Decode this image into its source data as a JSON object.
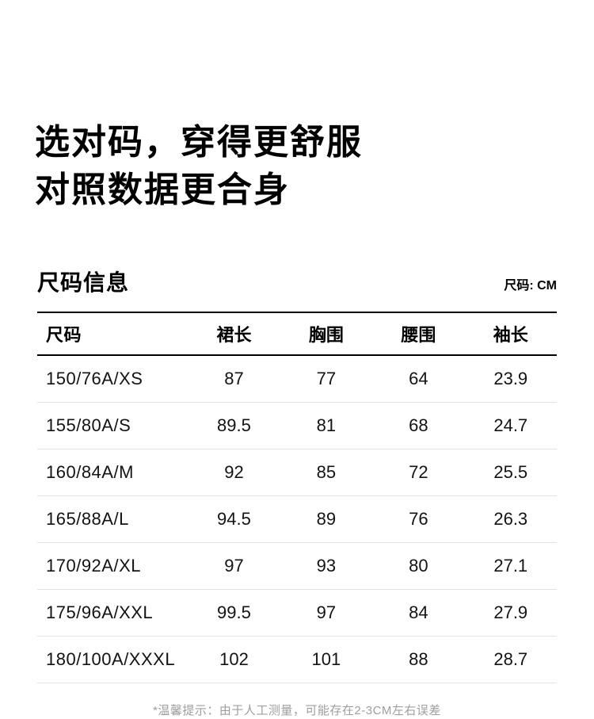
{
  "title": {
    "line1": "选对码，穿得更舒服",
    "line2": "对照数据更合身"
  },
  "section": {
    "title": "尺码信息",
    "unit_label": "尺码: CM"
  },
  "table": {
    "columns": [
      "尺码",
      "裙长",
      "胸围",
      "腰围",
      "袖长"
    ],
    "rows": [
      {
        "size": "150/76A/XS",
        "values": [
          "87",
          "77",
          "64",
          "23.9"
        ]
      },
      {
        "size": "155/80A/S",
        "values": [
          "89.5",
          "81",
          "68",
          "24.7"
        ]
      },
      {
        "size": "160/84A/M",
        "values": [
          "92",
          "85",
          "72",
          "25.5"
        ]
      },
      {
        "size": "165/88A/L",
        "values": [
          "94.5",
          "89",
          "76",
          "26.3"
        ]
      },
      {
        "size": "170/92A/XL",
        "values": [
          "97",
          "93",
          "80",
          "27.1"
        ]
      },
      {
        "size": "175/96A/XXL",
        "values": [
          "99.5",
          "97",
          "84",
          "27.9"
        ]
      },
      {
        "size": "180/100A/XXXL",
        "values": [
          "102",
          "101",
          "88",
          "28.7"
        ]
      }
    ]
  },
  "footnote": "*温馨提示：由于人工测量，可能存在2-3CM左右误差",
  "colors": {
    "text": "#000000",
    "row_separator": "#e2e2e2",
    "table_border": "#000000",
    "muted_text": "#9e9e9e",
    "background": "#ffffff"
  }
}
